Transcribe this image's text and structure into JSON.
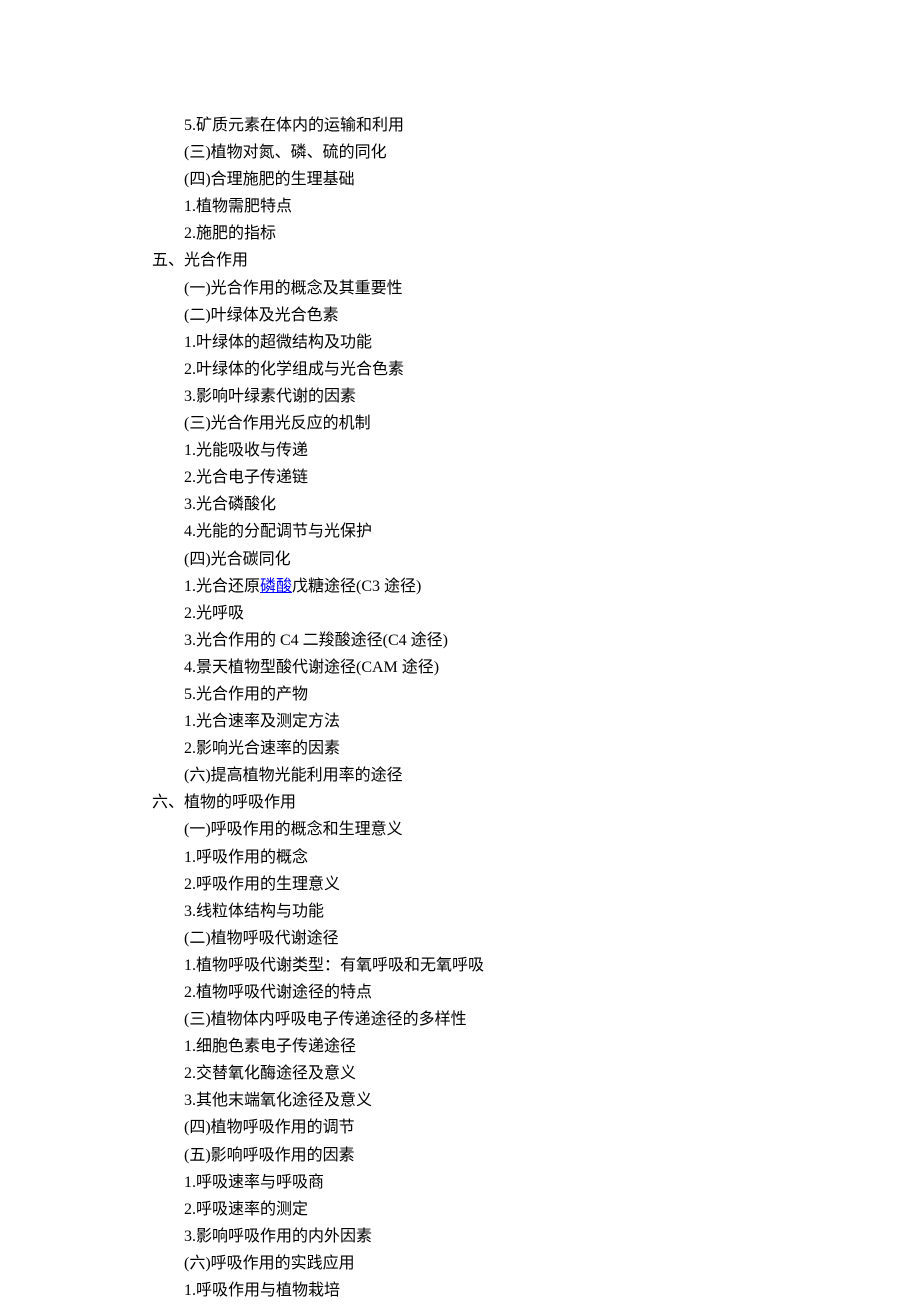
{
  "lines": [
    {
      "indent": 2,
      "text": "5.矿质元素在体内的运输和利用"
    },
    {
      "indent": 2,
      "text": "(三)植物对氮、磷、硫的同化"
    },
    {
      "indent": 2,
      "text": "(四)合理施肥的生理基础"
    },
    {
      "indent": 2,
      "text": "1.植物需肥特点"
    },
    {
      "indent": 2,
      "text": "2.施肥的指标"
    },
    {
      "indent": 0,
      "text": "五、光合作用"
    },
    {
      "indent": 2,
      "text": "(一)光合作用的概念及其重要性"
    },
    {
      "indent": 2,
      "text": "(二)叶绿体及光合色素"
    },
    {
      "indent": 2,
      "text": "1.叶绿体的超微结构及功能"
    },
    {
      "indent": 2,
      "text": "2.叶绿体的化学组成与光合色素"
    },
    {
      "indent": 2,
      "text": "3.影响叶绿素代谢的因素"
    },
    {
      "indent": 2,
      "text": "(三)光合作用光反应的机制"
    },
    {
      "indent": 2,
      "text": "1.光能吸收与传递"
    },
    {
      "indent": 2,
      "text": "2.光合电子传递链"
    },
    {
      "indent": 2,
      "text": "3.光合磷酸化"
    },
    {
      "indent": 2,
      "text": "4.光能的分配调节与光保护"
    },
    {
      "indent": 2,
      "text": "(四)光合碳同化"
    },
    {
      "indent": 2,
      "pre": "1.光合还原",
      "link": "磷酸",
      "post": "戊糖途径(C3 途径)"
    },
    {
      "indent": 2,
      "text": "2.光呼吸"
    },
    {
      "indent": 2,
      "text": "3.光合作用的 C4 二羧酸途径(C4 途径)"
    },
    {
      "indent": 2,
      "text": "4.景天植物型酸代谢途径(CAM 途径)"
    },
    {
      "indent": 2,
      "text": "5.光合作用的产物"
    },
    {
      "indent": 2,
      "text": "1.光合速率及测定方法"
    },
    {
      "indent": 2,
      "text": "2.影响光合速率的因素"
    },
    {
      "indent": 2,
      "text": "(六)提高植物光能利用率的途径"
    },
    {
      "indent": 0,
      "text": "六、植物的呼吸作用"
    },
    {
      "indent": 2,
      "text": "(一)呼吸作用的概念和生理意义"
    },
    {
      "indent": 2,
      "text": "1.呼吸作用的概念"
    },
    {
      "indent": 2,
      "text": "2.呼吸作用的生理意义"
    },
    {
      "indent": 2,
      "text": "3.线粒体结构与功能"
    },
    {
      "indent": 2,
      "text": "(二)植物呼吸代谢途径"
    },
    {
      "indent": 2,
      "text": "1.植物呼吸代谢类型：有氧呼吸和无氧呼吸"
    },
    {
      "indent": 2,
      "text": "2.植物呼吸代谢途径的特点"
    },
    {
      "indent": 2,
      "text": "(三)植物体内呼吸电子传递途径的多样性"
    },
    {
      "indent": 2,
      "text": "1.细胞色素电子传递途径"
    },
    {
      "indent": 2,
      "text": "2.交替氧化酶途径及意义"
    },
    {
      "indent": 2,
      "text": "3.其他末端氧化途径及意义"
    },
    {
      "indent": 2,
      "text": "(四)植物呼吸作用的调节"
    },
    {
      "indent": 2,
      "text": "(五)影响呼吸作用的因素"
    },
    {
      "indent": 2,
      "text": "1.呼吸速率与呼吸商"
    },
    {
      "indent": 2,
      "text": "2.呼吸速率的测定"
    },
    {
      "indent": 2,
      "text": "3.影响呼吸作用的内外因素"
    },
    {
      "indent": 2,
      "text": "(六)呼吸作用的实践应用"
    },
    {
      "indent": 2,
      "text": "1.呼吸作用与植物栽培"
    }
  ]
}
